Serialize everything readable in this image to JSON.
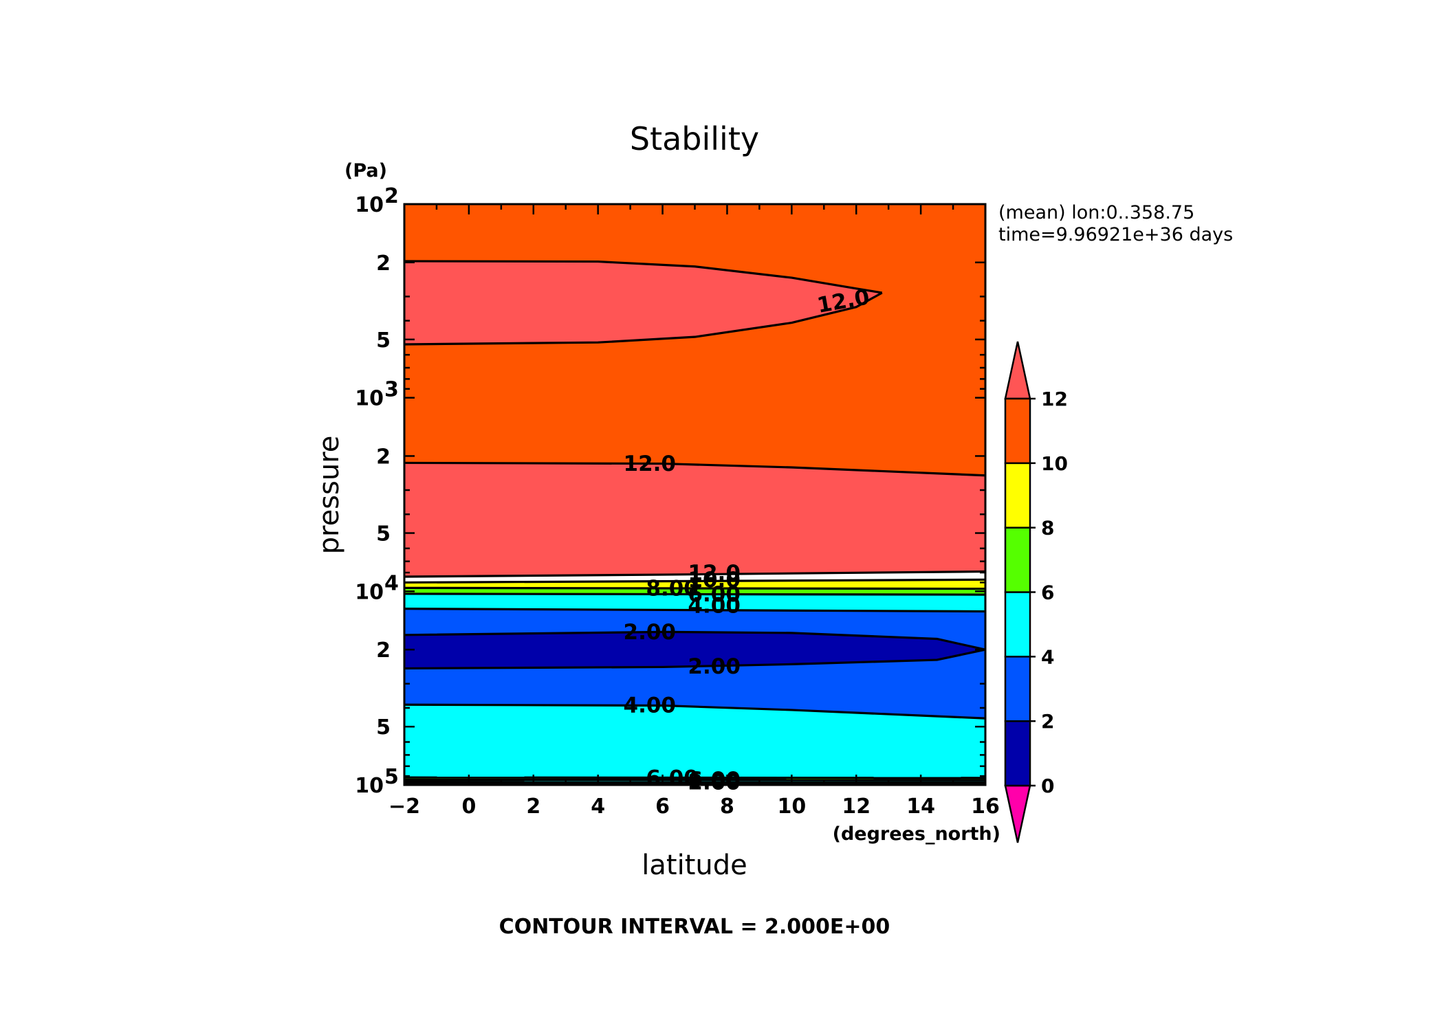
{
  "chart_data": {
    "type": "contour",
    "title": "Stability",
    "xlabel": "latitude",
    "xunits": "(degrees_north)",
    "ylabel": "pressure",
    "yunits": "(Pa)",
    "xlim": [
      -2,
      16
    ],
    "xticks": [
      -2,
      0,
      2,
      4,
      6,
      8,
      10,
      12,
      14,
      16
    ],
    "xtick_labels": [
      "−2",
      "0",
      "2",
      "4",
      "6",
      "8",
      "10",
      "12",
      "14",
      "16"
    ],
    "yscale": "log",
    "ylim": [
      100000,
      100
    ],
    "yticks": [
      {
        "value": 100,
        "mantissa": "10",
        "exponent": "2"
      },
      {
        "value": 200,
        "mantissa": "2",
        "exponent": ""
      },
      {
        "value": 500,
        "mantissa": "5",
        "exponent": ""
      },
      {
        "value": 1000,
        "mantissa": "10",
        "exponent": "3"
      },
      {
        "value": 2000,
        "mantissa": "2",
        "exponent": ""
      },
      {
        "value": 5000,
        "mantissa": "5",
        "exponent": ""
      },
      {
        "value": 10000,
        "mantissa": "10",
        "exponent": "4"
      },
      {
        "value": 20000,
        "mantissa": "2",
        "exponent": ""
      },
      {
        "value": 50000,
        "mantissa": "5",
        "exponent": ""
      },
      {
        "value": 100000,
        "mantissa": "10",
        "exponent": "5"
      }
    ],
    "info_lines": [
      "(mean) lon:0..358.75",
      "time=9.96921e+36 days"
    ],
    "footer": "CONTOUR INTERVAL = 2.000E+00",
    "colorbar": {
      "levels": [
        0,
        2,
        4,
        6,
        8,
        10,
        12
      ],
      "labels": [
        "0",
        "2",
        "4",
        "6",
        "8",
        "10",
        "12"
      ],
      "colors": [
        "#0000aa",
        "#0055ff",
        "#00ffff",
        "#55ff00",
        "#ffff00",
        "#ff5500"
      ],
      "under_color": "#ff00aa",
      "over_color": "#ff5555"
    },
    "bands": [
      {
        "color": "#ff5500",
        "top": [
          [
            -2,
            100
          ],
          [
            16,
            100
          ]
        ],
        "bottom": [
          [
            -2,
            8400
          ],
          [
            6,
            8200
          ],
          [
            16,
            7900
          ]
        ]
      },
      {
        "color": "#ff5555",
        "top": [
          [
            -2,
            197
          ],
          [
            4,
            198
          ],
          [
            7,
            210
          ],
          [
            10,
            240
          ],
          [
            12,
            273
          ],
          [
            12.8,
            287
          ]
        ],
        "bottom": [
          [
            -2,
            530
          ],
          [
            4,
            518
          ],
          [
            7,
            485
          ],
          [
            10,
            410
          ],
          [
            12,
            340
          ],
          [
            12.8,
            287
          ]
        ]
      },
      {
        "color": "#ff5555",
        "top": [
          [
            -2,
            2170
          ],
          [
            6,
            2190
          ],
          [
            10,
            2290
          ],
          [
            16,
            2520
          ]
        ],
        "bottom": [
          [
            -2,
            8400
          ],
          [
            6,
            8200
          ],
          [
            16,
            7900
          ]
        ]
      },
      {
        "color": "#ffff00",
        "top": [
          [
            -2,
            9000
          ],
          [
            16,
            8700
          ]
        ],
        "bottom": [
          [
            -2,
            9600
          ],
          [
            16,
            9700
          ]
        ]
      },
      {
        "color": "#55ff00",
        "top": [
          [
            -2,
            9600
          ],
          [
            16,
            9700
          ]
        ],
        "bottom": [
          [
            -2,
            10300
          ],
          [
            16,
            10400
          ]
        ]
      },
      {
        "color": "#00ffff",
        "top": [
          [
            -2,
            10300
          ],
          [
            16,
            10400
          ]
        ],
        "bottom": [
          [
            -2,
            12300
          ],
          [
            16,
            12700
          ]
        ]
      },
      {
        "color": "#0055ff",
        "top": [
          [
            -2,
            12300
          ],
          [
            16,
            12700
          ]
        ],
        "bottom": [
          [
            -2,
            38500
          ],
          [
            6,
            38900
          ],
          [
            10,
            41000
          ],
          [
            16,
            45300
          ]
        ]
      },
      {
        "color": "#0000aa",
        "top": [
          [
            -2,
            16800
          ],
          [
            6,
            16200
          ],
          [
            10,
            16400
          ],
          [
            14.5,
            17600
          ],
          [
            16,
            20000
          ]
        ],
        "bottom": [
          [
            -2,
            25000
          ],
          [
            6,
            24600
          ],
          [
            10,
            23800
          ],
          [
            14.5,
            22600
          ],
          [
            16,
            20000
          ]
        ]
      },
      {
        "color": "#00ffff",
        "top": [
          [
            -2,
            38500
          ],
          [
            6,
            38900
          ],
          [
            10,
            41000
          ],
          [
            16,
            45300
          ]
        ],
        "bottom": [
          [
            -2,
            91500
          ],
          [
            16,
            92000
          ]
        ]
      },
      {
        "color": "#55ff00",
        "top": [
          [
            -2,
            91500
          ],
          [
            16,
            92000
          ]
        ],
        "bottom": [
          [
            -2,
            94000
          ],
          [
            16,
            94300
          ]
        ]
      },
      {
        "color": "#00ffff",
        "top": [
          [
            -2,
            94000
          ],
          [
            16,
            94300
          ]
        ],
        "bottom": [
          [
            -2,
            96500
          ],
          [
            16,
            96600
          ]
        ]
      },
      {
        "color": "#0055ff",
        "top": [
          [
            -2,
            96500
          ],
          [
            16,
            96600
          ]
        ],
        "bottom": [
          [
            -2,
            98200
          ],
          [
            16,
            98200
          ]
        ]
      },
      {
        "color": "#0000aa",
        "top": [
          [
            -2,
            98200
          ],
          [
            16,
            98200
          ]
        ],
        "bottom": [
          [
            -2,
            100000
          ],
          [
            16,
            100000
          ]
        ]
      }
    ],
    "contours": [
      {
        "points": [
          [
            -2,
            197
          ],
          [
            4,
            198
          ],
          [
            7,
            210
          ],
          [
            10,
            240
          ],
          [
            12,
            273
          ],
          [
            12.8,
            287
          ]
        ]
      },
      {
        "points": [
          [
            -2,
            530
          ],
          [
            4,
            518
          ],
          [
            7,
            485
          ],
          [
            10,
            410
          ],
          [
            12,
            340
          ],
          [
            12.8,
            287
          ]
        ]
      },
      {
        "points": [
          [
            -2,
            2170
          ],
          [
            6,
            2190
          ],
          [
            10,
            2290
          ],
          [
            16,
            2520
          ]
        ]
      },
      {
        "points": [
          [
            -2,
            8400
          ],
          [
            6,
            8200
          ],
          [
            16,
            7900
          ]
        ]
      },
      {
        "points": [
          [
            -2,
            9000
          ],
          [
            16,
            8700
          ]
        ]
      },
      {
        "points": [
          [
            -2,
            9600
          ],
          [
            16,
            9700
          ]
        ]
      },
      {
        "points": [
          [
            -2,
            10300
          ],
          [
            16,
            10400
          ]
        ]
      },
      {
        "points": [
          [
            -2,
            12300
          ],
          [
            16,
            12700
          ]
        ]
      },
      {
        "points": [
          [
            -2,
            16800
          ],
          [
            6,
            16200
          ],
          [
            10,
            16400
          ],
          [
            14.5,
            17600
          ],
          [
            16,
            20000
          ]
        ]
      },
      {
        "points": [
          [
            -2,
            25000
          ],
          [
            6,
            24600
          ],
          [
            10,
            23800
          ],
          [
            14.5,
            22600
          ],
          [
            16,
            20000
          ]
        ]
      },
      {
        "points": [
          [
            -2,
            38500
          ],
          [
            6,
            38900
          ],
          [
            10,
            41000
          ],
          [
            16,
            45300
          ]
        ]
      },
      {
        "points": [
          [
            -2,
            91500
          ],
          [
            16,
            92000
          ]
        ]
      },
      {
        "points": [
          [
            -2,
            94000
          ],
          [
            16,
            94300
          ]
        ]
      },
      {
        "points": [
          [
            -2,
            96500
          ],
          [
            16,
            96600
          ]
        ]
      },
      {
        "points": [
          [
            -2,
            98200
          ],
          [
            16,
            98200
          ]
        ]
      }
    ],
    "contour_labels": [
      {
        "text": "12.0",
        "x": 11.6,
        "y": 318,
        "angle": -10
      },
      {
        "text": "12.0",
        "x": 5.6,
        "y": 2200,
        "angle": 0
      },
      {
        "text": "12.0",
        "x": 7.6,
        "y": 8050,
        "angle": 0
      },
      {
        "text": "10.0",
        "x": 7.6,
        "y": 8750,
        "angle": 0
      },
      {
        "text": "8.00",
        "x": 6.3,
        "y": 9700,
        "angle": 0
      },
      {
        "text": "6.00",
        "x": 7.6,
        "y": 10400,
        "angle": 0
      },
      {
        "text": "4.00",
        "x": 7.6,
        "y": 11900,
        "angle": 0
      },
      {
        "text": "2.00",
        "x": 5.6,
        "y": 16300,
        "angle": 0
      },
      {
        "text": "2.00",
        "x": 7.6,
        "y": 24500,
        "angle": 0
      },
      {
        "text": "4.00",
        "x": 5.6,
        "y": 38900,
        "angle": 0
      },
      {
        "text": "6.00",
        "x": 6.3,
        "y": 92500,
        "angle": 0
      },
      {
        "text": "6.00",
        "x": 7.6,
        "y": 94500,
        "angle": 0
      },
      {
        "text": "2.00",
        "x": 7.6,
        "y": 97200,
        "angle": 0
      }
    ]
  }
}
